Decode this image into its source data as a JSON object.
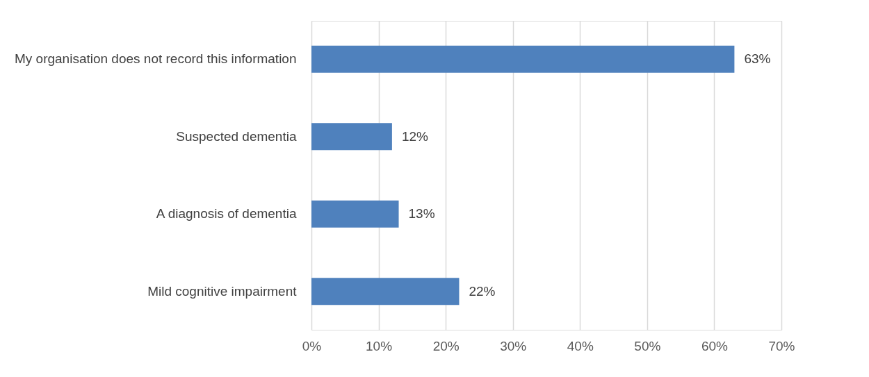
{
  "chart_data": {
    "type": "bar",
    "orientation": "horizontal",
    "categories": [
      "My organisation does not record this information",
      "Suspected dementia",
      "A diagnosis of dementia",
      "Mild cognitive impairment"
    ],
    "values": [
      63,
      12,
      13,
      22
    ],
    "value_labels": [
      "63%",
      "12%",
      "13%",
      "22%"
    ],
    "color": "#4f81bd",
    "xlim": [
      0,
      70
    ],
    "xticks": [
      {
        "value": 0,
        "label": "0%"
      },
      {
        "value": 10,
        "label": "10%"
      },
      {
        "value": 20,
        "label": "20%"
      },
      {
        "value": 30,
        "label": "30%"
      },
      {
        "value": 40,
        "label": "40%"
      },
      {
        "value": 50,
        "label": "50%"
      },
      {
        "value": 60,
        "label": "60%"
      },
      {
        "value": 70,
        "label": "70%"
      }
    ],
    "grid": "x"
  }
}
